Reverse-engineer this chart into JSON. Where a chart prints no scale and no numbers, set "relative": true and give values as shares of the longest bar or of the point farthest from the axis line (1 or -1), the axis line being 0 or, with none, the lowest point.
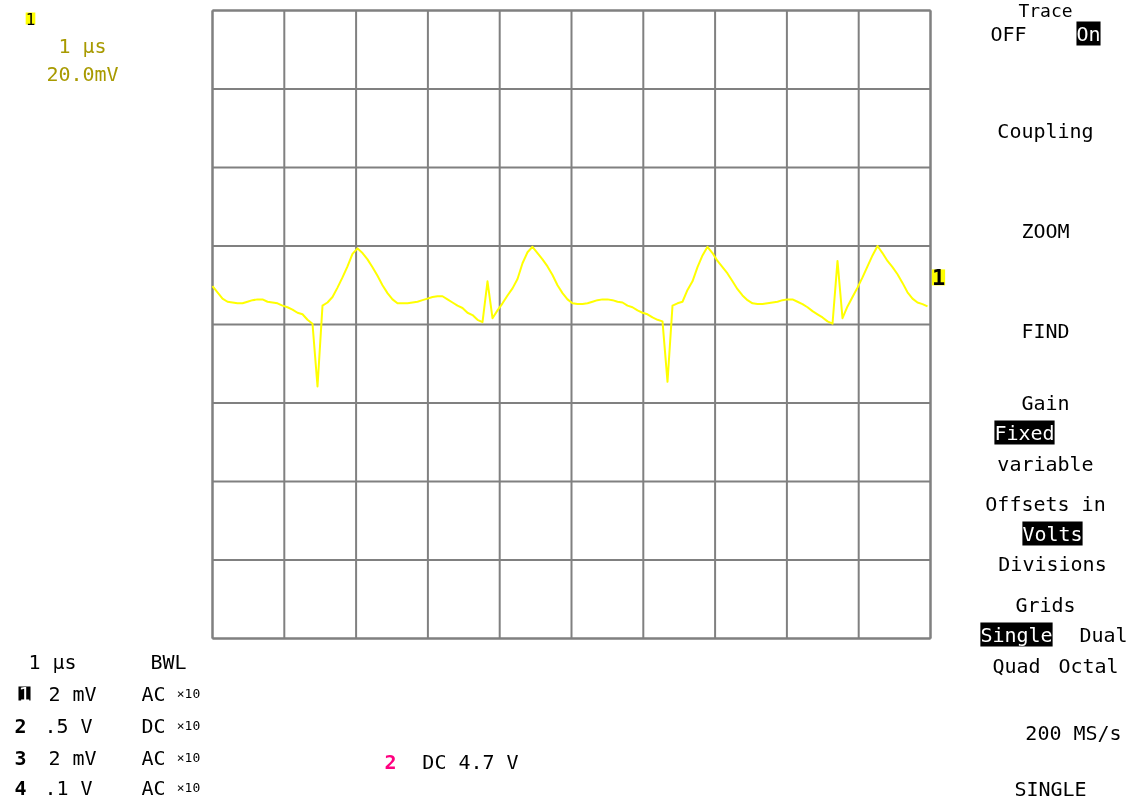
{
  "chart_data": {
    "type": "line",
    "relative": true,
    "grid": true,
    "marker": "none",
    "line_style": "solid",
    "categories": [
      null,
      null,
      null,
      null,
      null,
      null,
      null,
      null,
      null,
      null,
      null,
      null,
      null,
      null,
      null,
      null,
      null,
      null,
      null,
      null,
      null,
      null,
      null,
      null,
      null,
      null,
      null,
      null,
      null,
      null,
      null,
      null,
      null,
      null,
      null,
      null,
      null,
      null,
      null,
      null,
      null,
      null,
      null,
      null,
      null,
      null,
      null,
      null,
      null,
      null,
      null,
      null,
      null,
      null,
      null,
      null,
      null,
      null,
      null,
      null,
      null,
      null,
      null,
      null,
      null,
      null,
      null,
      null,
      null,
      null,
      null,
      null,
      null,
      null,
      null,
      null,
      null,
      null,
      null,
      null,
      null,
      null,
      null,
      null,
      null,
      null,
      null,
      null,
      null,
      null,
      null,
      null,
      null,
      null,
      null,
      null,
      null,
      null,
      null,
      null,
      null,
      null,
      null,
      null,
      null,
      null,
      null,
      null,
      null,
      null,
      null,
      null,
      null,
      null,
      null,
      null,
      null,
      null,
      null,
      null,
      null,
      null,
      null,
      null,
      null,
      null,
      null,
      null,
      null,
      null,
      null,
      null,
      null,
      null,
      null,
      null,
      null,
      null,
      null,
      null,
      null,
      null,
      null,
      null
    ],
    "series": [
      {
        "name": "1",
        "color": "#ffff00",
        "values": [
          0.49,
          0.41,
          0.33,
          0.29,
          0.28,
          0.27,
          0.27,
          0.29,
          0.31,
          0.32,
          0.32,
          0.29,
          0.28,
          0.27,
          0.24,
          0.22,
          0.19,
          0.15,
          0.13,
          0.06,
          0.01,
          -0.79,
          0.24,
          0.28,
          0.35,
          0.47,
          0.6,
          0.74,
          0.9,
          0.97,
          0.91,
          0.83,
          0.73,
          0.62,
          0.5,
          0.4,
          0.32,
          0.27,
          0.27,
          0.27,
          0.28,
          0.29,
          0.31,
          0.33,
          0.35,
          0.36,
          0.36,
          0.32,
          0.28,
          0.24,
          0.21,
          0.15,
          0.12,
          0.06,
          0.03,
          0.55,
          0.08,
          0.18,
          0.27,
          0.37,
          0.46,
          0.58,
          0.78,
          0.92,
          0.99,
          0.91,
          0.83,
          0.74,
          0.63,
          0.5,
          0.4,
          0.32,
          0.27,
          0.26,
          0.26,
          0.27,
          0.29,
          0.31,
          0.32,
          0.32,
          0.31,
          0.29,
          0.28,
          0.24,
          0.22,
          0.18,
          0.15,
          0.13,
          0.09,
          0.06,
          0.04,
          -0.73,
          0.24,
          0.27,
          0.29,
          0.44,
          0.55,
          0.73,
          0.88,
          0.99,
          0.91,
          0.81,
          0.73,
          0.65,
          0.55,
          0.45,
          0.37,
          0.31,
          0.27,
          0.26,
          0.26,
          0.27,
          0.28,
          0.29,
          0.31,
          0.32,
          0.32,
          0.29,
          0.26,
          0.22,
          0.17,
          0.13,
          0.09,
          0.04,
          0.01,
          0.81,
          0.08,
          0.23,
          0.35,
          0.47,
          0.6,
          0.74,
          0.88,
          1.0,
          0.91,
          0.81,
          0.73,
          0.64,
          0.53,
          0.41,
          0.33,
          0.28,
          0.26,
          0.23
        ]
      }
    ],
    "annotations": [
      "1 µs",
      "20.0mV",
      "Trace",
      "OFF",
      "On",
      "Coupling",
      "ZOOM",
      "FIND",
      "Gain",
      "Fixed",
      "variable",
      "Offsets in",
      "Volts",
      "Divisions",
      "Grids",
      "Single",
      "Dual",
      "Quad",
      "Octal",
      "200 MS/s",
      "SINGLE",
      "1 µs",
      "BWL",
      "1",
      "2 mV",
      "AC",
      "×10",
      "2",
      ".5 V",
      "DC",
      "×10",
      "3",
      "2 mV",
      "AC",
      "×10",
      "4",
      ".1 V",
      "AC",
      "×10",
      "2",
      "DC 4.7 V",
      "1"
    ]
  }
}
